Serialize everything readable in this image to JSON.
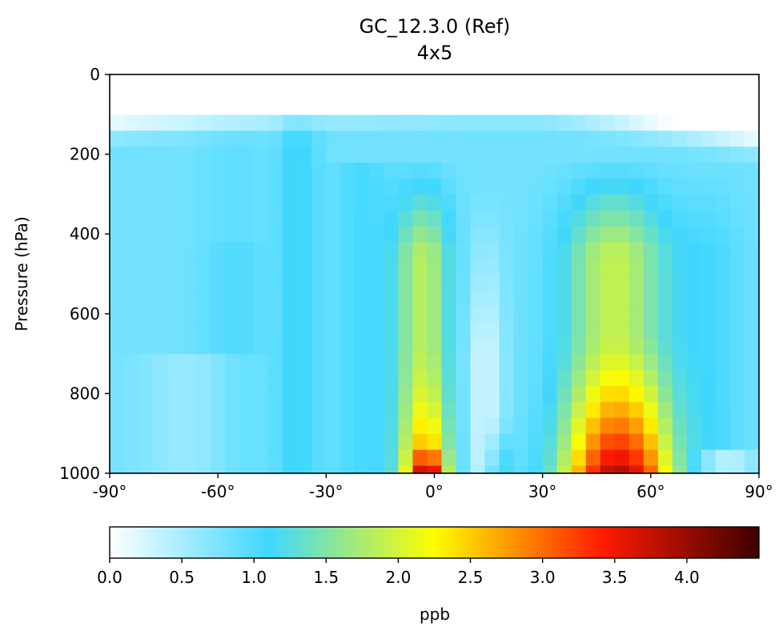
{
  "chart_data": {
    "type": "heatmap",
    "title": "GC_12.3.0 (Ref)",
    "subtitle": "4x5",
    "xlabel": "",
    "ylabel": "Pressure (hPa)",
    "x_range": [
      -90,
      90
    ],
    "y_range": [
      1000,
      0
    ],
    "x_ticks": [
      "-90°",
      "-60°",
      "-30°",
      "0°",
      "30°",
      "60°",
      "90°"
    ],
    "x_tick_values": [
      -90,
      -60,
      -30,
      0,
      30,
      60,
      90
    ],
    "y_ticks": [
      "0",
      "200",
      "400",
      "600",
      "800",
      "1000"
    ],
    "y_tick_values": [
      0,
      200,
      400,
      600,
      800,
      1000
    ],
    "lat_centers": [
      -88,
      -84,
      -80,
      -76,
      -72,
      -68,
      -64,
      -60,
      -56,
      -52,
      -48,
      -44,
      -40,
      -36,
      -32,
      -28,
      -24,
      -20,
      -16,
      -12,
      -8,
      -4,
      0,
      4,
      8,
      12,
      16,
      20,
      24,
      28,
      32,
      36,
      40,
      44,
      48,
      52,
      56,
      60,
      64,
      68,
      72,
      76,
      80,
      84,
      88
    ],
    "pressure_levels": [
      1000,
      960,
      920,
      880,
      840,
      800,
      760,
      720,
      680,
      640,
      600,
      560,
      520,
      480,
      440,
      400,
      360,
      320,
      280,
      240,
      200,
      160,
      120,
      80
    ],
    "colorbar": {
      "label": "ppb",
      "ticks": [
        "0.0",
        "0.5",
        "1.0",
        "1.5",
        "2.0",
        "2.5",
        "3.0",
        "3.5",
        "4.0"
      ],
      "tick_values": [
        0,
        0.5,
        1.0,
        1.5,
        2.0,
        2.5,
        3.0,
        3.5,
        4.0
      ],
      "vmin": 0.0,
      "vmax": 4.5,
      "colors": [
        "#ffffff",
        "#3fd7ff",
        "#fdfd00",
        "#ff1a00",
        "#3d0000"
      ],
      "color_stops": [
        0.0,
        0.245,
        0.5,
        0.76,
        1.0
      ]
    }
  }
}
